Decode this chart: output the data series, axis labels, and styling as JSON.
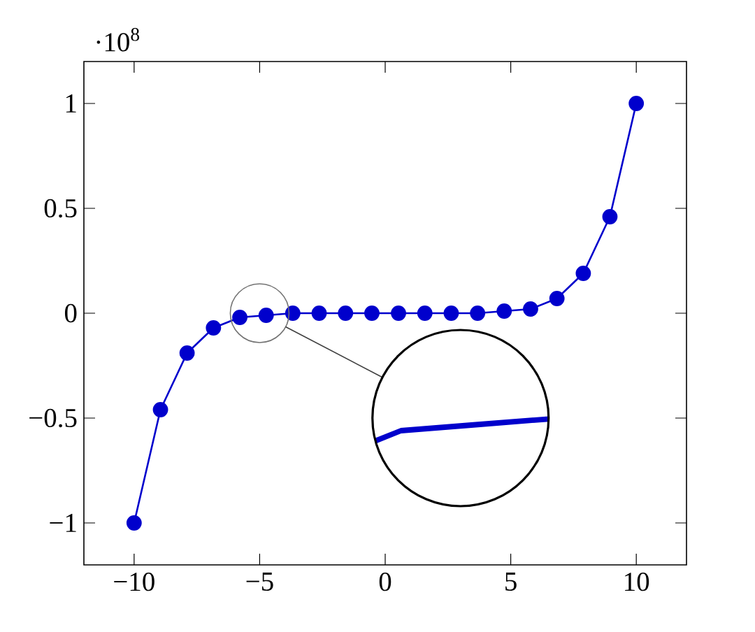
{
  "chart_data": {
    "type": "line",
    "annotations": [
      "·10$^{8}$"
    ],
    "x": [
      -10,
      -8.95,
      -7.89,
      -6.84,
      -5.79,
      -4.74,
      -3.68,
      -2.63,
      -1.58,
      -0.53,
      0.53,
      1.58,
      2.63,
      3.68,
      4.74,
      5.79,
      6.84,
      7.89,
      8.95,
      10
    ],
    "values": [
      -1,
      -0.46,
      -0.19,
      -0.07,
      -0.02,
      -0.01,
      0,
      0,
      0,
      0,
      0,
      0,
      0,
      0,
      0.01,
      0.02,
      0.07,
      0.19,
      0.46,
      1
    ],
    "color": "#0000cc",
    "marker": "circle",
    "xlim": [
      -12,
      12
    ],
    "ylim": [
      -1.2,
      1.2
    ],
    "xticks": [
      {
        "value": -10,
        "label": "−10"
      },
      {
        "value": -5,
        "label": "−5"
      },
      0,
      5,
      10
    ],
    "yticks": [
      {
        "value": -1,
        "label": "−1"
      },
      {
        "value": -0.5,
        "label": "−0.5"
      },
      0,
      0.5,
      1
    ]
  }
}
